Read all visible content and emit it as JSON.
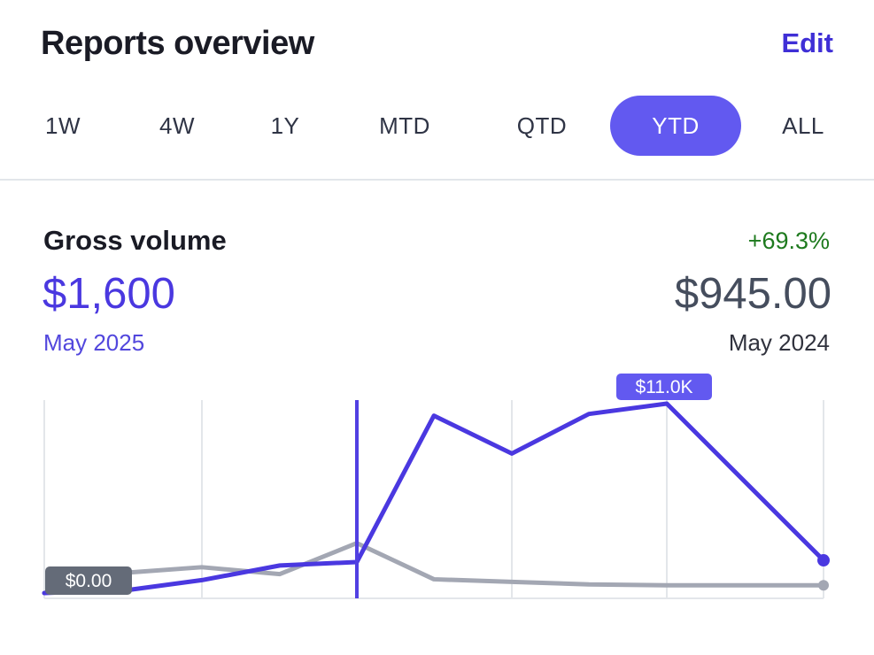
{
  "header": {
    "title": "Reports overview",
    "edit_label": "Edit"
  },
  "range_tabs": [
    {
      "label": "1W",
      "active": false
    },
    {
      "label": "4W",
      "active": false
    },
    {
      "label": "1Y",
      "active": false
    },
    {
      "label": "MTD",
      "active": false
    },
    {
      "label": "QTD",
      "active": false
    },
    {
      "label": "YTD",
      "active": true
    },
    {
      "label": "ALL",
      "active": false
    }
  ],
  "metric": {
    "title": "Gross volume",
    "change": "+69.3%",
    "current_value": "$1,600",
    "previous_value": "$945.00",
    "current_period": "May 2025",
    "previous_period": "May 2024"
  },
  "colors": {
    "accent": "#4a38e0",
    "tab_active": "#6259f0",
    "previous_series": "#a3a7b3",
    "positive": "#1e7a1e"
  },
  "chart_data": {
    "type": "line",
    "min_label": "$0.00",
    "max_label": "$11.0K",
    "ylim": [
      0,
      11000
    ],
    "grid": "vertical lines",
    "series": [
      {
        "values": [
          0,
          200,
          750,
          1600,
          1800,
          10300,
          8100,
          10400,
          11000,
          1900
        ]
      },
      {
        "values": [
          0,
          1200,
          1500,
          1100,
          2900,
          800,
          650,
          500,
          450,
          450
        ]
      }
    ],
    "cursor_index": 4
  }
}
